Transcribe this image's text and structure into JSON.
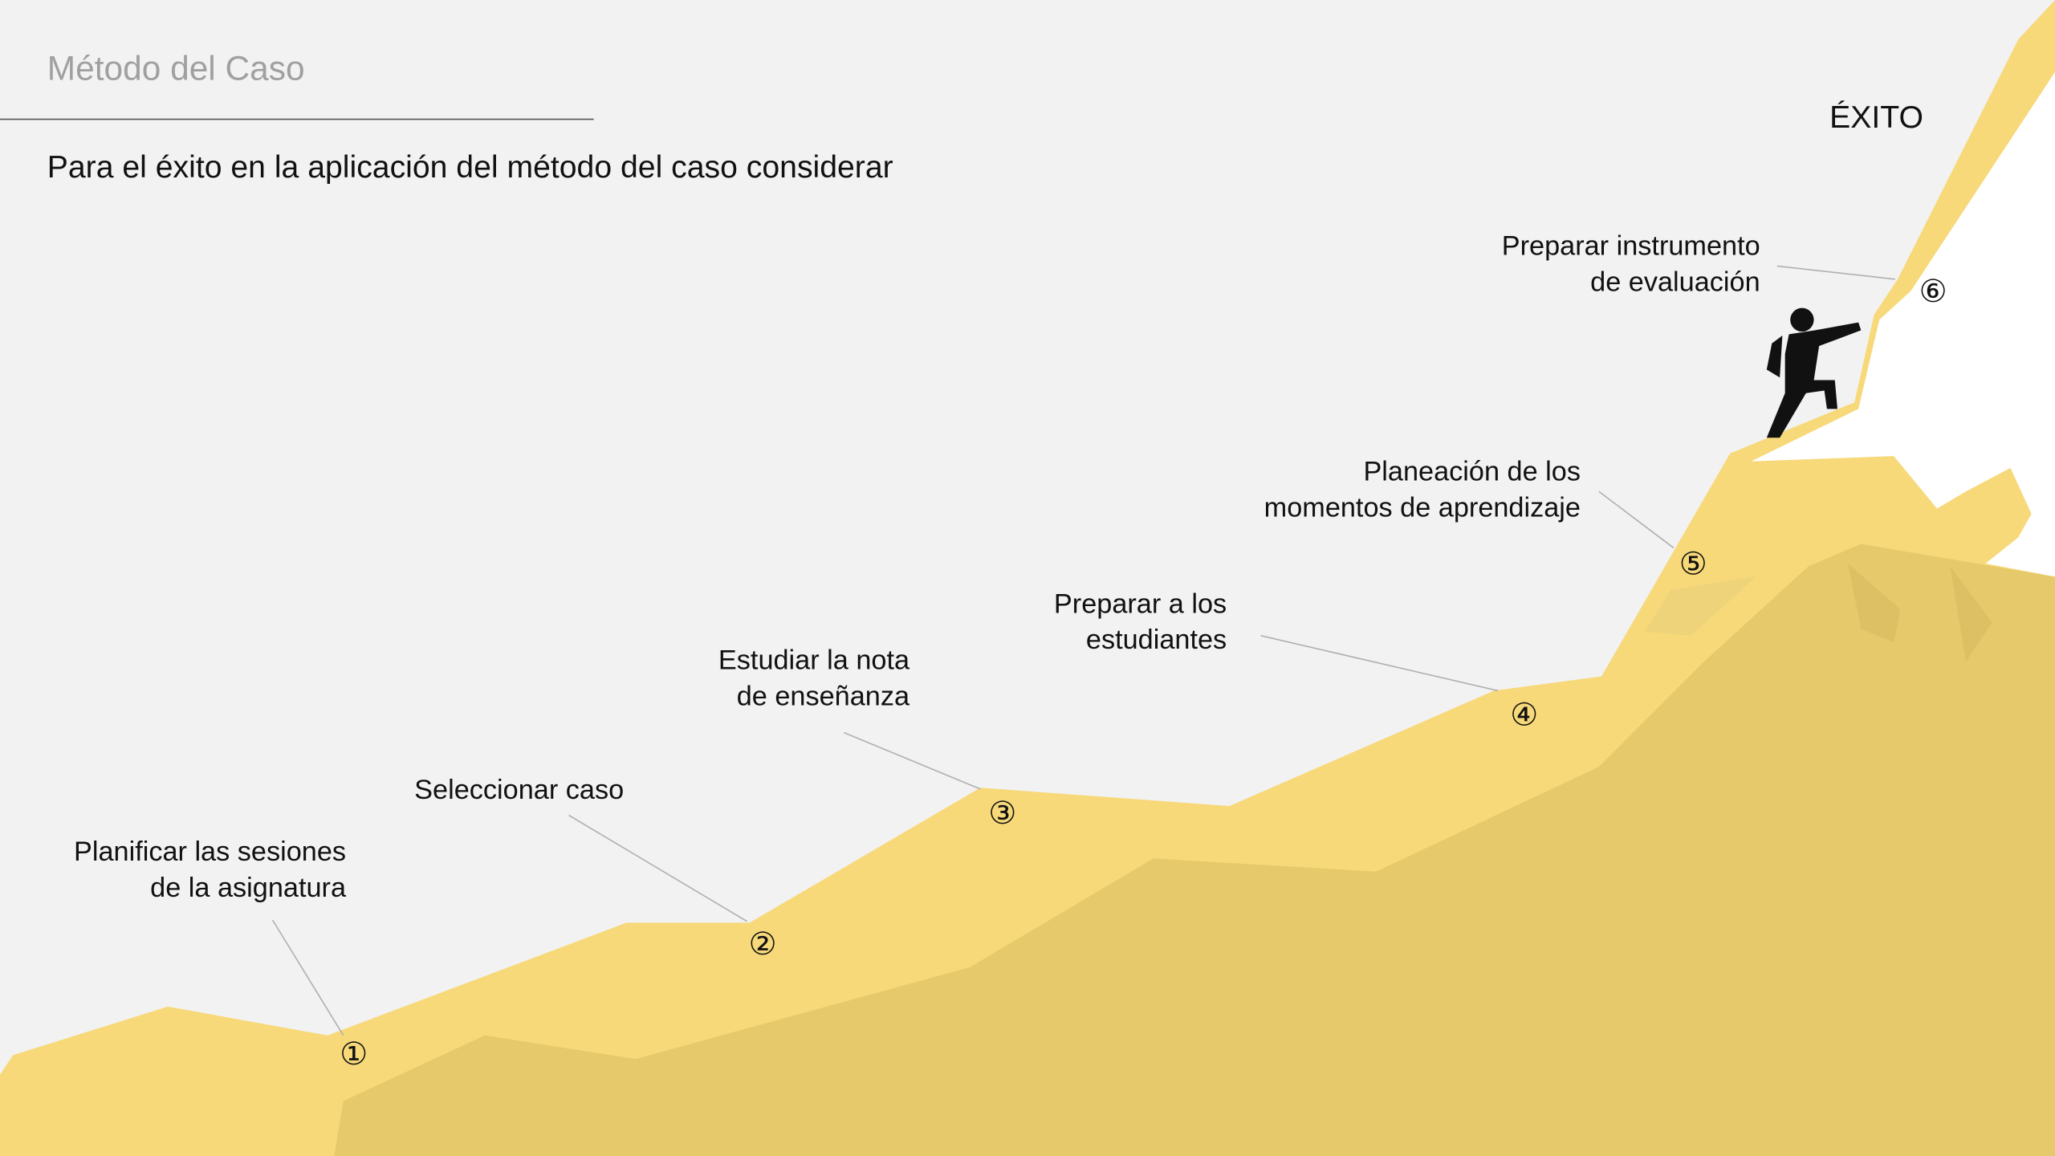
{
  "header": {
    "title": "Método del Caso",
    "subtitle": "Para el éxito en la aplicación del método del caso considerar"
  },
  "peak_label": "ÉXITO",
  "steps": [
    {
      "number": "①",
      "label": [
        "Planificar las sesiones",
        "de la asignatura"
      ]
    },
    {
      "number": "②",
      "label": [
        "Seleccionar caso"
      ]
    },
    {
      "number": "③",
      "label": [
        "Estudiar la nota",
        "de enseñanza"
      ]
    },
    {
      "number": "④",
      "label": [
        "Preparar a los",
        "estudiantes"
      ]
    },
    {
      "number": "⑤",
      "label": [
        "Planeación de los",
        "momentos de aprendizaje"
      ]
    },
    {
      "number": "⑥",
      "label": [
        "Preparar instrumento",
        "de evaluación"
      ]
    }
  ]
}
